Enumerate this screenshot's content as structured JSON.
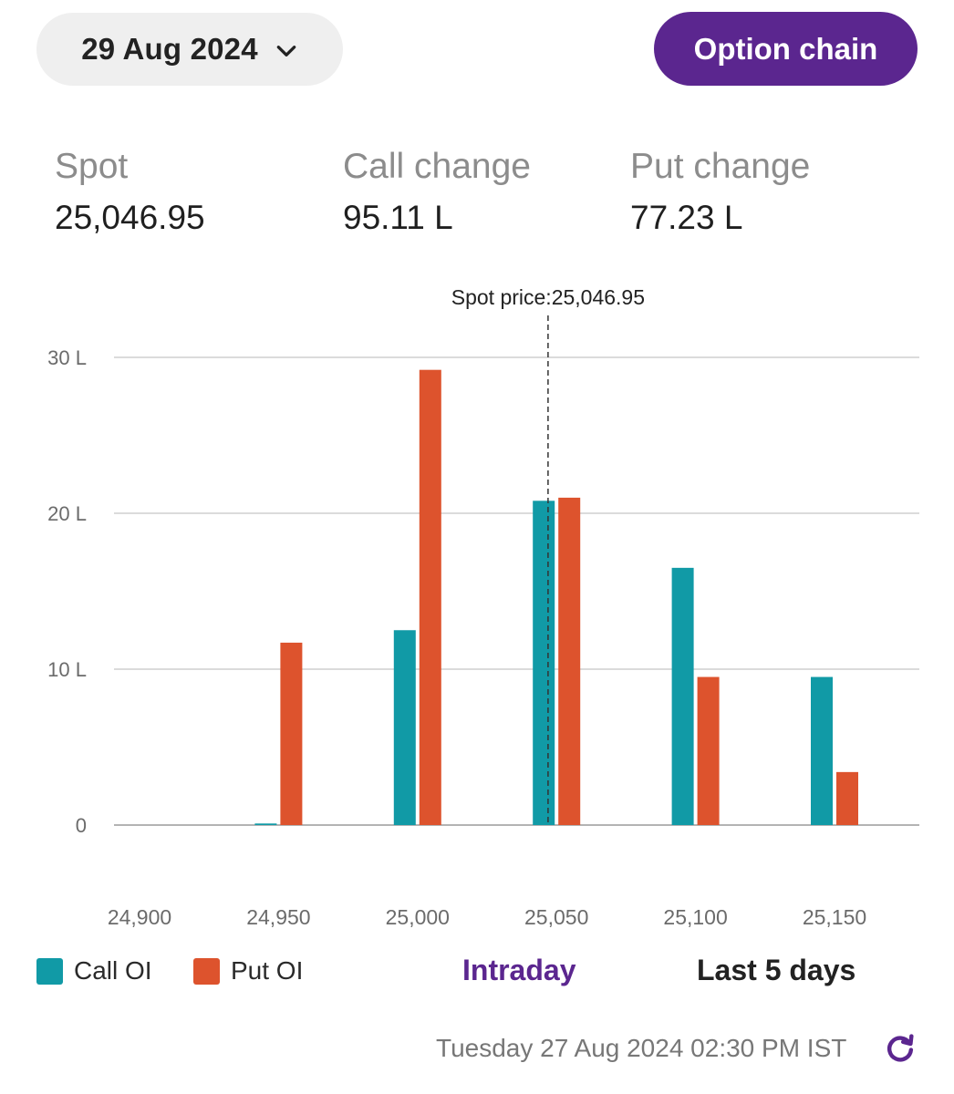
{
  "header": {
    "expiry_date": "29 Aug 2024",
    "option_chain_label": "Option chain"
  },
  "stats": {
    "spot_label": "Spot",
    "spot_value": "25,046.95",
    "call_change_label": "Call change",
    "call_change_value": "95.11 L",
    "put_change_label": "Put change",
    "put_change_value": "77.23 L"
  },
  "colors": {
    "call": "#119aa6",
    "put": "#dd532d",
    "accent": "#5b268f"
  },
  "chart_data": {
    "type": "bar",
    "categories": [
      "24,900",
      "24,950",
      "25,000",
      "25,050",
      "25,100",
      "25,150"
    ],
    "strikes": [
      24900,
      24950,
      25000,
      25050,
      25100,
      25150
    ],
    "series": [
      {
        "name": "Call OI",
        "values": [
          0,
          0.1,
          12.5,
          20.8,
          16.5,
          9.5
        ]
      },
      {
        "name": "Put OI",
        "values": [
          0,
          11.7,
          29.2,
          21.0,
          9.5,
          3.4
        ]
      }
    ],
    "yticks": [
      "0",
      "10 L",
      "20 L",
      "30 L"
    ],
    "ytick_values": [
      0,
      10,
      20,
      30
    ],
    "ylim": [
      0,
      30
    ],
    "unit": "L",
    "spot_line": {
      "value": 25046.95,
      "label": "Spot price:25,046.95"
    },
    "grid": true,
    "legend": "bottom-left"
  },
  "legend": {
    "call_label": "Call OI",
    "put_label": "Put OI"
  },
  "range_tabs": {
    "intraday": "Intraday",
    "last5": "Last 5 days"
  },
  "footer": {
    "timestamp": "Tuesday 27 Aug 2024 02:30 PM IST",
    "refresh_icon": "refresh-icon"
  }
}
